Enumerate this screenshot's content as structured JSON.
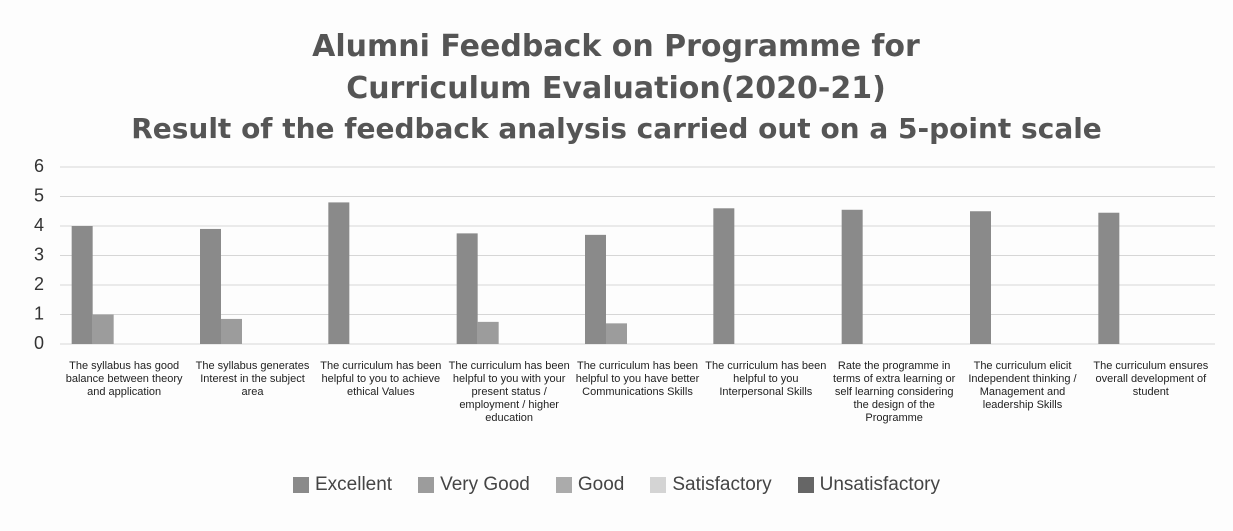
{
  "chart_data": {
    "type": "bar",
    "title": "Alumni Feedback on Programme for Curriculum Evaluation(2020-21)",
    "subtitle": "Result of the feedback analysis carried out on a 5-point scale",
    "categories": [
      "The syllabus has good balance between theory and application",
      "The syllabus generates Interest in the subject area",
      "The curriculum has been helpful to you to achieve ethical Values",
      "The curriculum has been helpful to you with your present status / employment / higher education",
      "The curriculum has been helpful to you have better Communications Skills",
      "The curriculum has been helpful to you Interpersonal Skills",
      "Rate the programme in terms of extra learning or self learning considering the design of the Programme",
      "The curriculum elicit Independent thinking / Management and leadership Skills",
      "The curriculum ensures overall development of student"
    ],
    "series": [
      {
        "name": "Excellent",
        "color": "#8a8a8a",
        "values": [
          4.0,
          3.9,
          4.8,
          3.75,
          3.7,
          4.6,
          4.55,
          4.5,
          4.45
        ]
      },
      {
        "name": "Very Good",
        "color": "#9c9c9c",
        "values": [
          1.0,
          0.85,
          0,
          0.75,
          0.7,
          0,
          0,
          0,
          0
        ]
      },
      {
        "name": "Good",
        "color": "#ababab",
        "values": [
          0,
          0,
          0,
          0,
          0,
          0,
          0,
          0,
          0
        ]
      },
      {
        "name": "Satisfactory",
        "color": "#d4d4d4",
        "values": [
          0,
          0,
          0,
          0,
          0,
          0,
          0,
          0,
          0
        ]
      },
      {
        "name": "Unsatisfactory",
        "color": "#666666",
        "values": [
          0,
          0,
          0,
          0,
          0,
          0,
          0,
          0,
          0
        ]
      }
    ],
    "ylim": [
      0,
      6
    ],
    "yticks": [
      0,
      1,
      2,
      3,
      4,
      5,
      6
    ],
    "grid": true,
    "legend": "bottom"
  }
}
